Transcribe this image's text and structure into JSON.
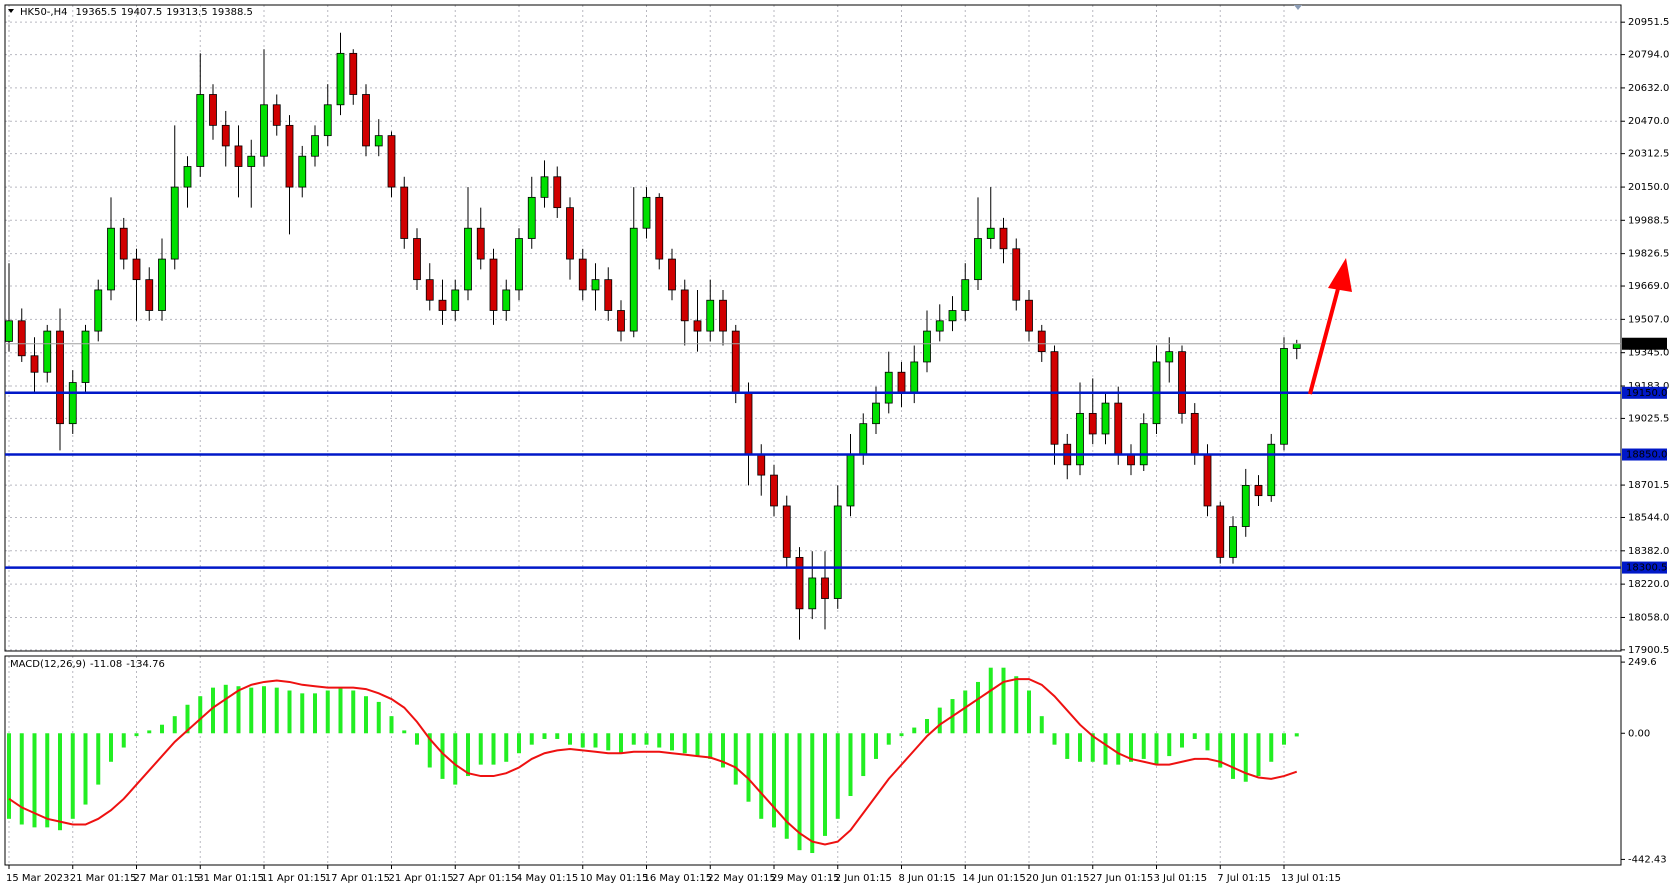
{
  "chart_data": [
    {
      "type": "candlestick",
      "symbol": "HK50-,H4",
      "categories": [
        "15 Mar 2023",
        null,
        null,
        null,
        null,
        "21 Mar 01:15",
        null,
        null,
        null,
        null,
        "27 Mar 01:15",
        null,
        null,
        null,
        null,
        "31 Mar 01:15",
        null,
        null,
        null,
        null,
        "11 Apr 01:15",
        null,
        null,
        null,
        null,
        "17 Apr 01:15",
        null,
        null,
        null,
        null,
        "21 Apr 01:15",
        null,
        null,
        null,
        null,
        "27 Apr 01:15",
        null,
        null,
        null,
        null,
        "4 May 01:15",
        null,
        null,
        null,
        null,
        "10 May 01:15",
        null,
        null,
        null,
        null,
        "16 May 01:15",
        null,
        null,
        null,
        null,
        "22 May 01:15",
        null,
        null,
        null,
        null,
        "29 May 01:15",
        null,
        null,
        null,
        null,
        "2 Jun 01:15",
        null,
        null,
        null,
        null,
        "8 Jun 01:15",
        null,
        null,
        null,
        null,
        "14 Jun 01:15",
        null,
        null,
        null,
        null,
        "20 Jun 01:15",
        null,
        null,
        null,
        null,
        "27 Jun 01:15",
        null,
        null,
        null,
        null,
        "3 Jul 01:15",
        null,
        null,
        null,
        null,
        "7 Jul 01:15",
        null,
        null,
        null,
        null,
        "13 Jul 01:15",
        null
      ],
      "candles": [
        [
          19400,
          19780,
          19350,
          19500
        ],
        [
          19500,
          19560,
          19300,
          19330
        ],
        [
          19330,
          19420,
          19150,
          19250
        ],
        [
          19250,
          19480,
          19200,
          19450
        ],
        [
          19450,
          19560,
          18870,
          19000
        ],
        [
          19000,
          19260,
          18950,
          19200
        ],
        [
          19200,
          19480,
          19150,
          19450
        ],
        [
          19450,
          19700,
          19400,
          19650
        ],
        [
          19650,
          20100,
          19600,
          19950
        ],
        [
          19950,
          20000,
          19750,
          19800
        ],
        [
          19800,
          19850,
          19500,
          19700
        ],
        [
          19700,
          19760,
          19500,
          19550
        ],
        [
          19550,
          19900,
          19500,
          19800
        ],
        [
          19800,
          20450,
          19750,
          20150
        ],
        [
          20150,
          20300,
          20050,
          20250
        ],
        [
          20250,
          20800,
          20200,
          20600
        ],
        [
          20600,
          20650,
          20380,
          20450
        ],
        [
          20450,
          20520,
          20250,
          20350
        ],
        [
          20350,
          20450,
          20100,
          20250
        ],
        [
          20250,
          20380,
          20050,
          20300
        ],
        [
          20300,
          20820,
          20250,
          20550
        ],
        [
          20550,
          20600,
          20400,
          20450
        ],
        [
          20450,
          20500,
          19920,
          20150
        ],
        [
          20150,
          20350,
          20100,
          20300
        ],
        [
          20300,
          20450,
          20250,
          20400
        ],
        [
          20400,
          20650,
          20350,
          20550
        ],
        [
          20550,
          20900,
          20500,
          20800
        ],
        [
          20800,
          20820,
          20550,
          20600
        ],
        [
          20600,
          20650,
          20300,
          20350
        ],
        [
          20350,
          20480,
          20300,
          20400
        ],
        [
          20400,
          20420,
          20100,
          20150
        ],
        [
          20150,
          20200,
          19850,
          19900
        ],
        [
          19900,
          19950,
          19650,
          19700
        ],
        [
          19700,
          19780,
          19550,
          19600
        ],
        [
          19600,
          19700,
          19480,
          19550
        ],
        [
          19550,
          19700,
          19500,
          19650
        ],
        [
          19650,
          20150,
          19600,
          19950
        ],
        [
          19950,
          20050,
          19750,
          19800
        ],
        [
          19800,
          19850,
          19480,
          19550
        ],
        [
          19550,
          19700,
          19500,
          19650
        ],
        [
          19650,
          19950,
          19600,
          19900
        ],
        [
          19900,
          20200,
          19850,
          20100
        ],
        [
          20100,
          20280,
          20050,
          20200
        ],
        [
          20200,
          20250,
          20000,
          20050
        ],
        [
          20050,
          20100,
          19700,
          19800
        ],
        [
          19800,
          19850,
          19600,
          19650
        ],
        [
          19650,
          19780,
          19550,
          19700
        ],
        [
          19700,
          19760,
          19500,
          19550
        ],
        [
          19550,
          19600,
          19400,
          19450
        ],
        [
          19450,
          20150,
          19420,
          19950
        ],
        [
          19950,
          20150,
          19900,
          20100
        ],
        [
          20100,
          20120,
          19750,
          19800
        ],
        [
          19800,
          19850,
          19600,
          19650
        ],
        [
          19650,
          19700,
          19380,
          19500
        ],
        [
          19500,
          19650,
          19350,
          19450
        ],
        [
          19450,
          19700,
          19400,
          19600
        ],
        [
          19600,
          19650,
          19380,
          19450
        ],
        [
          19450,
          19480,
          19100,
          19150
        ],
        [
          19150,
          19200,
          18700,
          18850
        ],
        [
          18850,
          18900,
          18650,
          18750
        ],
        [
          18750,
          18800,
          18550,
          18600
        ],
        [
          18600,
          18650,
          18300,
          18350
        ],
        [
          18350,
          18400,
          17950,
          18100
        ],
        [
          18100,
          18380,
          18050,
          18250
        ],
        [
          18250,
          18380,
          18000,
          18150
        ],
        [
          18150,
          18700,
          18100,
          18600
        ],
        [
          18600,
          18950,
          18550,
          18850
        ],
        [
          18850,
          19050,
          18800,
          19000
        ],
        [
          19000,
          19180,
          18950,
          19100
        ],
        [
          19100,
          19350,
          19050,
          19250
        ],
        [
          19250,
          19300,
          19080,
          19150
        ],
        [
          19150,
          19380,
          19100,
          19300
        ],
        [
          19300,
          19550,
          19250,
          19450
        ],
        [
          19450,
          19580,
          19400,
          19500
        ],
        [
          19500,
          19620,
          19450,
          19550
        ],
        [
          19550,
          19780,
          19500,
          19700
        ],
        [
          19700,
          20100,
          19650,
          19900
        ],
        [
          19900,
          20150,
          19850,
          19950
        ],
        [
          19950,
          20000,
          19780,
          19850
        ],
        [
          19850,
          19900,
          19550,
          19600
        ],
        [
          19600,
          19650,
          19400,
          19450
        ],
        [
          19450,
          19480,
          19300,
          19350
        ],
        [
          19350,
          19380,
          18800,
          18900
        ],
        [
          18900,
          18950,
          18730,
          18800
        ],
        [
          18800,
          19200,
          18750,
          19050
        ],
        [
          19050,
          19220,
          18900,
          18950
        ],
        [
          18950,
          19150,
          18900,
          19100
        ],
        [
          19100,
          19180,
          18800,
          18850
        ],
        [
          18850,
          18900,
          18750,
          18800
        ],
        [
          18800,
          19050,
          18770,
          19000
        ],
        [
          19000,
          19380,
          18950,
          19300
        ],
        [
          19300,
          19420,
          19200,
          19350
        ],
        [
          19350,
          19380,
          19000,
          19050
        ],
        [
          19050,
          19100,
          18800,
          18850
        ],
        [
          18850,
          18900,
          18550,
          18600
        ],
        [
          18600,
          18620,
          18320,
          18350
        ],
        [
          18350,
          18550,
          18320,
          18500
        ],
        [
          18500,
          18780,
          18450,
          18700
        ],
        [
          18700,
          18750,
          18600,
          18650
        ],
        [
          18650,
          18950,
          18620,
          18900
        ],
        [
          18900,
          19420,
          18870,
          19365.5
        ],
        [
          19365.5,
          19407.5,
          19313.5,
          19388.5
        ]
      ],
      "up_color": "#00e000",
      "down_color": "#d00000",
      "ylim": [
        17895,
        21035
      ],
      "yticks": [
        {
          "value": 20951.5,
          "label": "20951.5"
        },
        {
          "value": 20794,
          "label": "20794.0"
        },
        {
          "value": 20632,
          "label": "20632.0"
        },
        {
          "value": 20470,
          "label": "20470.0"
        },
        {
          "value": 20312.5,
          "label": "20312.5"
        },
        {
          "value": 20150,
          "label": "20150.0"
        },
        {
          "value": 19988.5,
          "label": "19988.5"
        },
        {
          "value": 19826.5,
          "label": "19826.5"
        },
        {
          "value": 19669,
          "label": "19669.0"
        },
        {
          "value": 19507,
          "label": "19507.0"
        },
        {
          "value": 19345,
          "label": "19345.0"
        },
        {
          "value": 19183,
          "label": "19183.0"
        },
        {
          "value": 19025.5,
          "label": "19025.5"
        },
        {
          "value": 18701.5,
          "label": "18701.5"
        },
        {
          "value": 18544,
          "label": "18544.0"
        },
        {
          "value": 18382,
          "label": "18382.0"
        },
        {
          "value": 18220,
          "label": "18220.0"
        },
        {
          "value": 18058,
          "label": "18058.0"
        },
        {
          "value": 17900.5,
          "label": "17900.5"
        }
      ],
      "levels": [
        {
          "value": 19150,
          "label": "19150.0"
        },
        {
          "value": 18850,
          "label": "18850.0"
        },
        {
          "value": 18300.5,
          "label": "18300.5"
        }
      ],
      "level_color": "#0018c8",
      "grid": true
    },
    {
      "type": "macd",
      "title": "MACD(12,26,9)",
      "histogram": {
        "color": "#22ee22",
        "values": [
          -300,
          -320,
          -330,
          -330,
          -340,
          -300,
          -250,
          -180,
          -100,
          -50,
          -10,
          10,
          30,
          60,
          100,
          130,
          160,
          170,
          165,
          160,
          165,
          160,
          150,
          140,
          140,
          150,
          160,
          150,
          130,
          110,
          60,
          10,
          -40,
          -120,
          -160,
          -180,
          -150,
          -110,
          -110,
          -100,
          -70,
          -40,
          -20,
          -20,
          -40,
          -50,
          -50,
          -60,
          -70,
          -40,
          -40,
          -50,
          -60,
          -70,
          -80,
          -90,
          -120,
          -180,
          -240,
          -300,
          -330,
          -370,
          -410,
          -420,
          -360,
          -300,
          -220,
          -150,
          -90,
          -40,
          -10,
          20,
          50,
          90,
          120,
          150,
          180,
          230,
          230,
          200,
          150,
          60,
          -40,
          -90,
          -100,
          -100,
          -110,
          -110,
          -100,
          -90,
          -110,
          -80,
          -50,
          -20,
          -60,
          -120,
          -160,
          -170,
          -150,
          -100,
          -40,
          -11.08
        ]
      },
      "signal": {
        "color": "#ee1111",
        "values": [
          -230,
          -260,
          -280,
          -300,
          -310,
          -320,
          -320,
          -300,
          -270,
          -230,
          -180,
          -130,
          -80,
          -30,
          10,
          50,
          90,
          120,
          150,
          170,
          180,
          185,
          180,
          170,
          165,
          160,
          160,
          160,
          155,
          140,
          120,
          90,
          40,
          -20,
          -70,
          -110,
          -140,
          -150,
          -150,
          -140,
          -120,
          -90,
          -70,
          -60,
          -55,
          -60,
          -65,
          -70,
          -70,
          -65,
          -65,
          -65,
          -70,
          -75,
          -80,
          -85,
          -100,
          -120,
          -160,
          -210,
          -260,
          -310,
          -350,
          -380,
          -390,
          -380,
          -340,
          -280,
          -220,
          -160,
          -110,
          -60,
          -10,
          30,
          60,
          90,
          120,
          150,
          180,
          190,
          190,
          170,
          130,
          80,
          30,
          -10,
          -40,
          -70,
          -90,
          -100,
          -110,
          -110,
          -100,
          -90,
          -90,
          -100,
          -120,
          -140,
          -155,
          -160,
          -150,
          -134.76
        ]
      },
      "ylim": [
        -462,
        271
      ],
      "yticks": [
        249.6,
        {
          "value": 0,
          "label": "0.00"
        },
        -442.43
      ]
    }
  ]
}
